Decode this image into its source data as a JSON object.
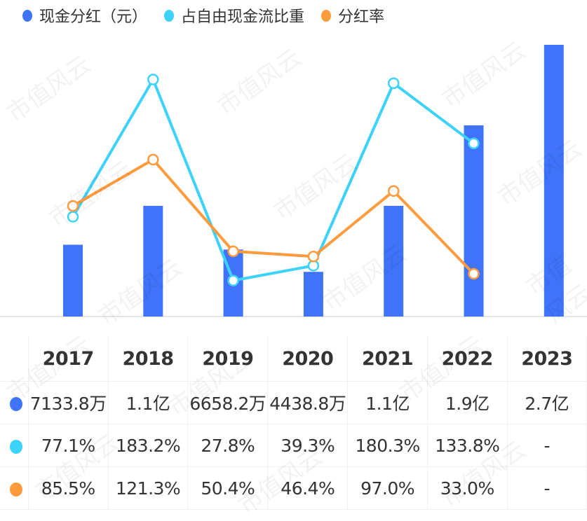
{
  "watermark": "市值风云",
  "chart_data": {
    "type": "bar+line",
    "categories": [
      "2017",
      "2018",
      "2019",
      "2020",
      "2021",
      "2022",
      "2023"
    ],
    "series": [
      {
        "name": "现金分红（元）",
        "kind": "bar",
        "color": "#3F73FA",
        "values_yi": [
          0.71338,
          1.1,
          0.66582,
          0.44388,
          1.1,
          1.9,
          2.7
        ],
        "labels": [
          "7133.8万",
          "1.1亿",
          "6658.2万",
          "4438.8万",
          "1.1亿",
          "1.9亿",
          "2.7亿"
        ]
      },
      {
        "name": "占自由现金流比重",
        "kind": "line",
        "color": "#3DD2FA",
        "values": [
          77.1,
          183.2,
          27.8,
          39.3,
          180.3,
          133.8,
          null
        ],
        "labels": [
          "77.1%",
          "183.2%",
          "27.8%",
          "39.3%",
          "180.3%",
          "133.8%",
          "-"
        ]
      },
      {
        "name": "分红率",
        "kind": "line",
        "color": "#FF9A3D",
        "values": [
          85.5,
          121.3,
          50.4,
          46.4,
          97.0,
          33.0,
          null
        ],
        "labels": [
          "85.5%",
          "121.3%",
          "50.4%",
          "46.4%",
          "97.0%",
          "33.0%",
          "-"
        ]
      }
    ],
    "bar_axis_yi": [
      0,
      2.7
    ],
    "percent_axis": [
      0,
      210
    ],
    "grid": false,
    "legend": "top-left"
  }
}
